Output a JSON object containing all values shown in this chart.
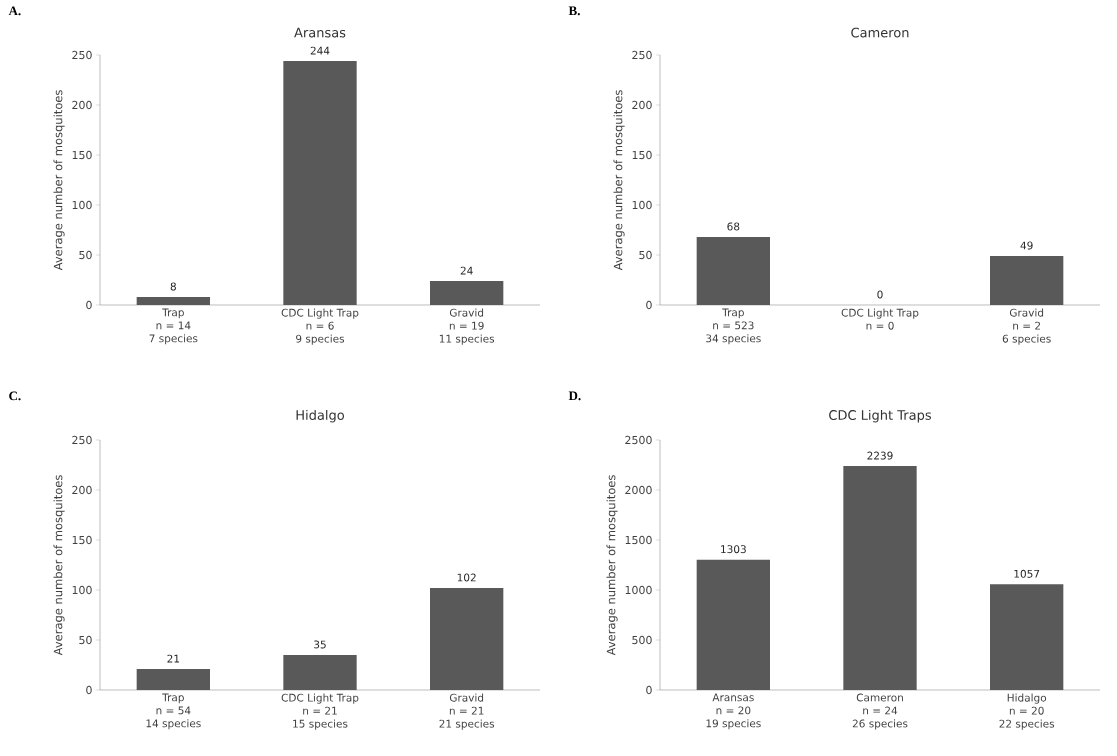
{
  "chart_data": [
    {
      "type": "bar",
      "title": "Aransas",
      "ylabel": "Average number of mosquitoes",
      "categories": [
        "Trap\nn = 14\n7 species",
        "CDC Light Trap\nn = 6\n9 species",
        "Gravid\nn = 19\n11 species"
      ],
      "values": [
        8,
        244,
        24
      ],
      "color": "#595959",
      "ylim": [
        0,
        250
      ],
      "yticks": [
        0,
        50,
        100,
        150,
        200,
        250
      ],
      "data_labels": true,
      "annotations": [
        "A."
      ]
    },
    {
      "type": "bar",
      "title": "Cameron",
      "ylabel": "Average number of mosquitoes",
      "categories": [
        "Trap\nn = 523\n34 species",
        "CDC Light Trap\nn = 0",
        "Gravid\nn = 2\n6 species"
      ],
      "values": [
        68,
        0,
        49
      ],
      "color": "#595959",
      "ylim": [
        0,
        250
      ],
      "yticks": [
        0,
        50,
        100,
        150,
        200,
        250
      ],
      "data_labels": true,
      "annotations": [
        "B."
      ]
    },
    {
      "type": "bar",
      "title": "Hidalgo",
      "ylabel": "Average number of mosquitoes",
      "categories": [
        "Trap\nn = 54\n14 species",
        "CDC Light Trap\nn = 21\n15 species",
        "Gravid\nn = 21\n21 species"
      ],
      "values": [
        21,
        35,
        102
      ],
      "color": "#595959",
      "ylim": [
        0,
        250
      ],
      "yticks": [
        0,
        50,
        100,
        150,
        200,
        250
      ],
      "data_labels": true,
      "annotations": [
        "C."
      ]
    },
    {
      "type": "bar",
      "title": "CDC Light Traps",
      "ylabel": "Average number of mosquitoes",
      "categories": [
        "Aransas\nn = 20\n19 species",
        "Cameron\nn = 24\n26 species",
        "Hidalgo\nn = 20\n22 species"
      ],
      "values": [
        1303,
        2239,
        1057
      ],
      "color": "#595959",
      "ylim": [
        0,
        2500
      ],
      "yticks": [
        0,
        500,
        1000,
        1500,
        2000,
        2500
      ],
      "data_labels": true,
      "annotations": [
        "D."
      ]
    }
  ]
}
